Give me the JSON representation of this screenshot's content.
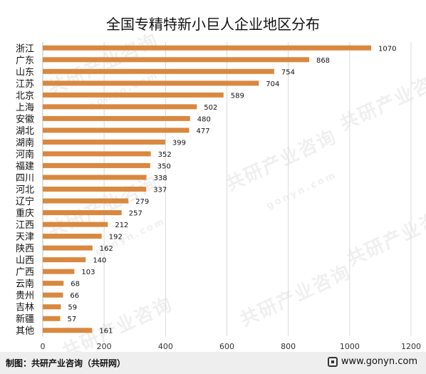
{
  "chart_data": {
    "type": "bar",
    "orientation": "horizontal",
    "title": "全国专精特新小巨人企业地区分布",
    "categories": [
      "浙江",
      "广东",
      "山东",
      "江苏",
      "北京",
      "上海",
      "安徽",
      "湖北",
      "湖南",
      "河南",
      "福建",
      "四川",
      "河北",
      "辽宁",
      "重庆",
      "江西",
      "天津",
      "陕西",
      "山西",
      "广西",
      "云南",
      "贵州",
      "吉林",
      "新疆",
      "其他"
    ],
    "values": [
      1070,
      868,
      754,
      704,
      589,
      502,
      480,
      477,
      399,
      352,
      350,
      338,
      337,
      279,
      257,
      212,
      192,
      162,
      140,
      103,
      68,
      66,
      59,
      57,
      161
    ],
    "xlim": [
      0,
      1200
    ],
    "xticks": [
      "0",
      "200",
      "400",
      "600",
      "800",
      "1000",
      "1200"
    ],
    "grid": "vertical",
    "bar_color": "#D9883F"
  },
  "watermark": {
    "brand": "共研产业咨询",
    "domain": "gonyn.com"
  },
  "footer": {
    "source": "制图：共研产业咨询（共研网）",
    "site": "www.gonyn.com"
  }
}
